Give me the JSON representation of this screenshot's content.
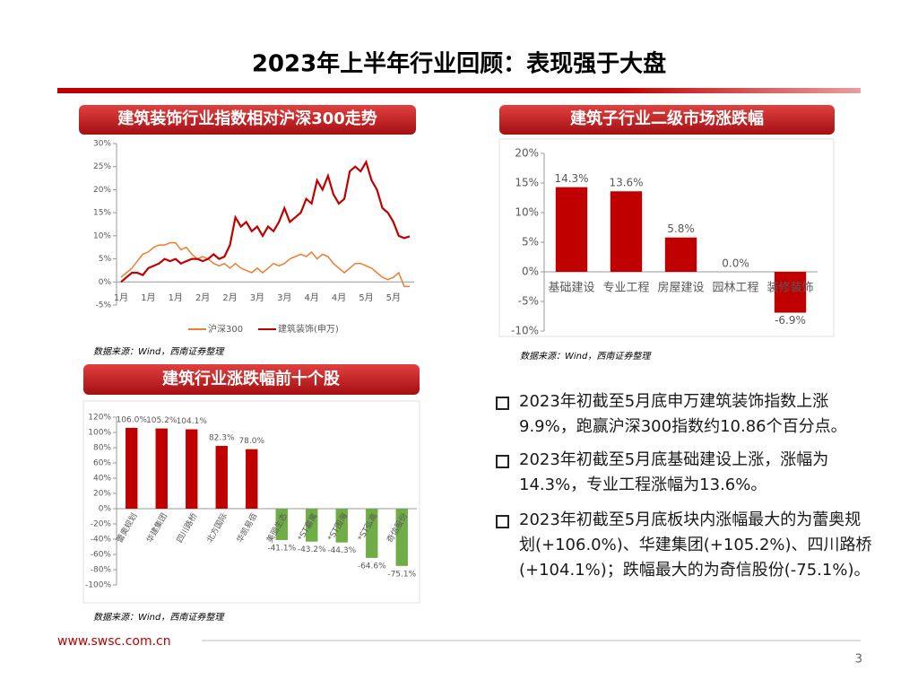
{
  "title": "2023年上半年行业回顾：表现强于大盘",
  "chart_data": [
    {
      "type": "line",
      "title": "建筑装饰行业指数相对沪深300走势",
      "categories": [
        "1月",
        null,
        null,
        null,
        null,
        "1月",
        null,
        null,
        null,
        null,
        "1月",
        null,
        null,
        null,
        null,
        "2月",
        null,
        null,
        null,
        null,
        "2月",
        null,
        null,
        null,
        null,
        "3月",
        null,
        null,
        null,
        null,
        "3月",
        null,
        null,
        null,
        null,
        "4月",
        null,
        null,
        null,
        null,
        "4月",
        null,
        null,
        null,
        null,
        "5月",
        null,
        null,
        null,
        null,
        "5月",
        null,
        null,
        null
      ],
      "series": [
        {
          "name": "沪深300",
          "color": "#ed7d31",
          "values": [
            1,
            2,
            3,
            4.5,
            6,
            6.5,
            7.5,
            8,
            8,
            8.5,
            8.5,
            7,
            7.5,
            6,
            5,
            5.5,
            5,
            4,
            3.5,
            4,
            3,
            4,
            3,
            2.5,
            2,
            3,
            2,
            3,
            4,
            3.5,
            4,
            5,
            5.5,
            6,
            5.5,
            6.5,
            5,
            6,
            5.5,
            4,
            3,
            2,
            3,
            4,
            4,
            3.5,
            3,
            2,
            1,
            0.5,
            1,
            2,
            -1,
            -1
          ]
        },
        {
          "name": "建筑装饰(申万)",
          "color": "#c00000",
          "values": [
            0,
            1,
            2,
            2,
            1.5,
            3,
            3.5,
            4,
            5,
            4.5,
            5,
            4,
            4.5,
            5,
            5,
            4.5,
            5,
            6,
            5,
            5.5,
            8,
            14,
            12,
            13,
            11,
            12,
            10,
            12,
            11,
            13,
            16,
            13,
            14,
            15,
            18,
            17,
            22,
            20,
            23,
            19,
            17,
            18,
            24,
            25,
            24,
            26,
            22,
            20,
            16,
            15,
            13,
            10,
            9.5,
            9.9
          ]
        }
      ],
      "ylim": [
        -5,
        30
      ],
      "yticks": [
        {
          "value": -5,
          "label": "-5%"
        },
        {
          "value": 0,
          "label": "0%"
        },
        {
          "value": 5,
          "label": "5%"
        },
        {
          "value": 10,
          "label": "10%"
        },
        {
          "value": 15,
          "label": "15%"
        },
        {
          "value": 20,
          "label": "20%"
        },
        {
          "value": 25,
          "label": "25%"
        },
        {
          "value": 30,
          "label": "30%"
        }
      ],
      "legend": "bottom"
    },
    {
      "type": "bar",
      "title": "建筑子行业二级市场涨跌幅",
      "categories": [
        "基础建设",
        "专业工程",
        "房屋建设",
        "园林工程",
        "装修装饰"
      ],
      "values": [
        14.3,
        13.6,
        5.8,
        0.0,
        -6.9
      ],
      "value_labels": [
        "14.3%",
        "13.6%",
        "5.8%",
        "0.0%",
        "-6.9%"
      ],
      "color": "#c00000",
      "ylim": [
        -10,
        20
      ],
      "yticks": [
        {
          "value": -10,
          "label": "-10%"
        },
        {
          "value": -5,
          "label": "-5%"
        },
        {
          "value": 0,
          "label": "0%"
        },
        {
          "value": 5,
          "label": "5%"
        },
        {
          "value": 10,
          "label": "10%"
        },
        {
          "value": 15,
          "label": "15%"
        },
        {
          "value": 20,
          "label": "20%"
        }
      ]
    },
    {
      "type": "bar",
      "title": "建筑行业涨跌幅前十个股",
      "categories": [
        "蕾奥规划",
        "华建集团",
        "四川路桥",
        "北方国际",
        "华凯易佰",
        "美丽生态",
        "*ST嘉寓",
        "*ST围海",
        "*ST弘高",
        "奇信股份"
      ],
      "values": [
        106.0,
        105.2,
        104.1,
        82.3,
        78.0,
        -41.1,
        -43.2,
        -44.3,
        -64.6,
        -75.1
      ],
      "value_labels": [
        "106.0%",
        "105.2%",
        "104.1%",
        "82.3%",
        "78.0%",
        "-41.1%",
        "-43.2%",
        "-44.3%",
        "-64.6%",
        "-75.1%"
      ],
      "color": "#c00000",
      "negative_color": "#70ad47",
      "ylim": [
        -100,
        120
      ],
      "yticks": [
        {
          "value": -100,
          "label": "-100%"
        },
        {
          "value": -80,
          "label": "-80%"
        },
        {
          "value": -60,
          "label": "-60%"
        },
        {
          "value": -40,
          "label": "-40%"
        },
        {
          "value": -20,
          "label": "-20%"
        },
        {
          "value": 0,
          "label": "0%"
        },
        {
          "value": 20,
          "label": "20%"
        },
        {
          "value": 40,
          "label": "40%"
        },
        {
          "value": 60,
          "label": "60%"
        },
        {
          "value": 80,
          "label": "80%"
        },
        {
          "value": 100,
          "label": "100%"
        },
        {
          "value": 120,
          "label": "120%"
        }
      ]
    }
  ],
  "sources": [
    "数据来源：Wind，西南证券整理",
    "数据来源：Wind，西南证券整理",
    "数据来源：Wind，西南证券整理"
  ],
  "bullets": [
    "2023年初截至5月底申万建筑装饰指数上涨9.9%，跑赢沪深300指数约10.86个百分点。",
    "2023年初截至5月底基础建设上涨，涨幅为14.3%，专业工程涨幅为13.6%。",
    "2023年初截至5月底板块内涨幅最大的为蕾奥规划(+106.0%)、华建集团(+105.2%)、四川路桥(+104.1%)；跌幅最大的为奇信股份(-75.1%)。"
  ],
  "footer": {
    "url": "www.swsc.com.cn",
    "page": "3"
  }
}
